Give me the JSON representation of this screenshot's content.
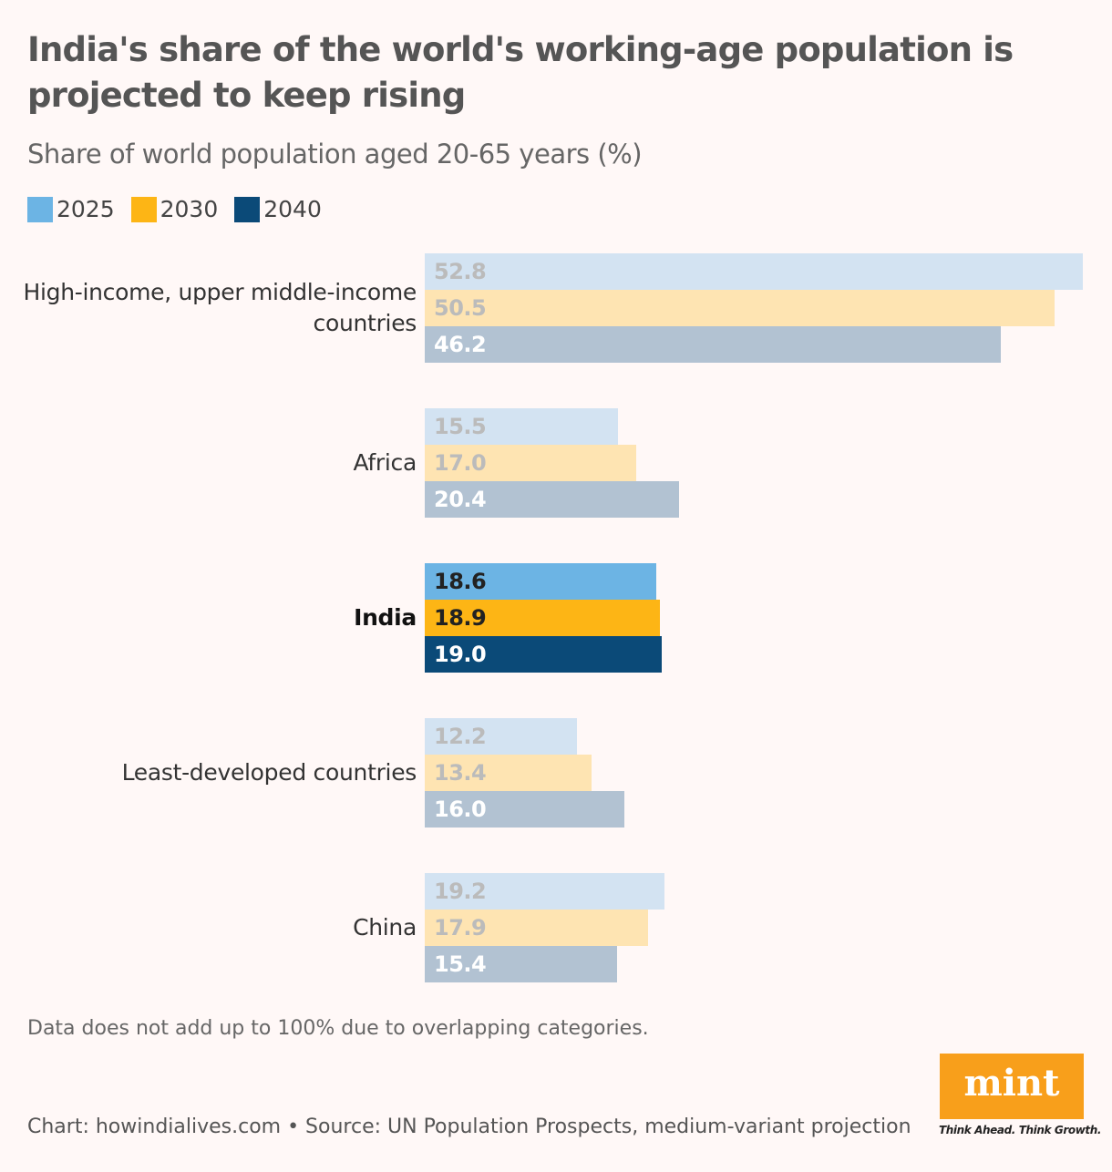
{
  "title": "India's share of the world's working-age population is projected to keep rising",
  "subtitle": "Share of world population aged 20-65 years (%)",
  "note": "Data does not add up to 100% due to overlapping categories.",
  "source": "Chart: howindialives.com • Source: UN Population Prospects, medium-variant projection",
  "logo": {
    "text": "mint",
    "tagline": "Think Ahead. Think Growth."
  },
  "chart_data": {
    "type": "bar",
    "orientation": "horizontal",
    "title": "India's share of the world's working-age population is projected to keep rising",
    "ylabel": "Share of world population aged 20-65 years (%)",
    "categories": [
      "High-income, upper middle-income countries",
      "Africa",
      "India",
      "Least-developed countries",
      "China"
    ],
    "highlight": "India",
    "series": [
      {
        "name": "2025",
        "color": "#6cb4e4",
        "muted": "#d3e3f2",
        "values": [
          52.8,
          15.5,
          18.6,
          12.2,
          19.2
        ]
      },
      {
        "name": "2030",
        "color": "#fdb515",
        "muted": "#fee4b2",
        "values": [
          50.5,
          17.0,
          18.9,
          13.4,
          17.9
        ]
      },
      {
        "name": "2040",
        "color": "#0b4a78",
        "muted": "#b2c2d2",
        "values": [
          46.2,
          20.4,
          19.0,
          16.0,
          15.4
        ]
      }
    ],
    "xlim": [
      0,
      52.8
    ],
    "grid": false,
    "legend": "top-left"
  }
}
